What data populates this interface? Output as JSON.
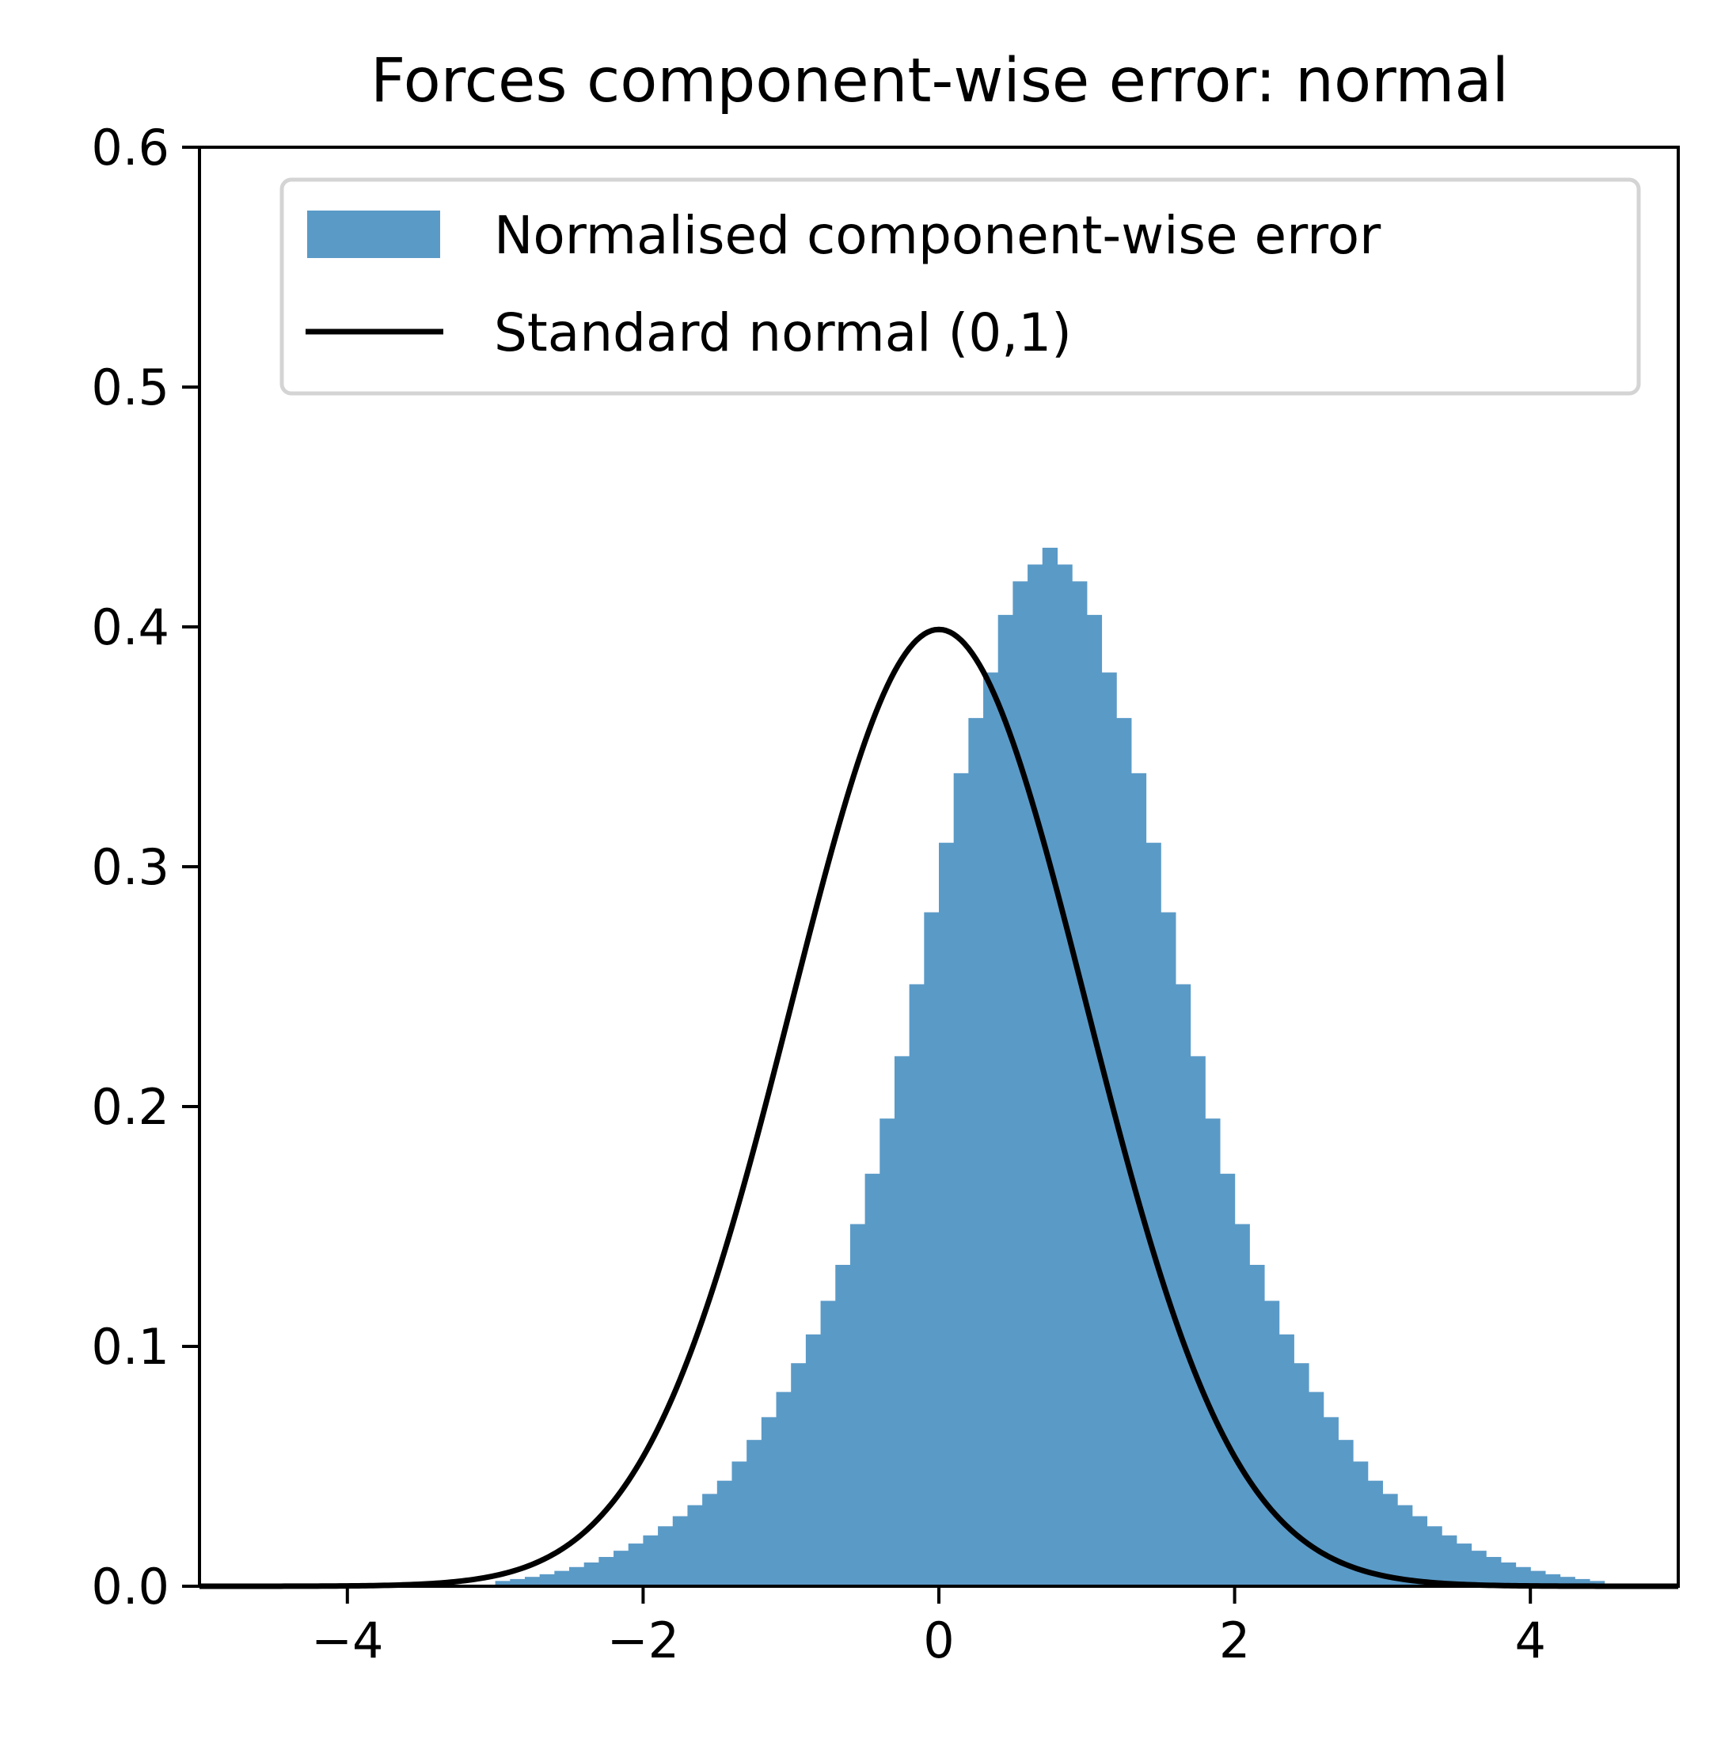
{
  "chart_data": {
    "type": "bar",
    "title": "Forces component-wise error: normal",
    "xlabel": "",
    "ylabel": "",
    "xlim": [
      -5,
      5
    ],
    "ylim": [
      0,
      0.6
    ],
    "xticks": [
      -4,
      -2,
      0,
      2,
      4
    ],
    "xtick_labels": [
      "−4",
      "−2",
      "0",
      "2",
      "4"
    ],
    "yticks": [
      0.0,
      0.1,
      0.2,
      0.3,
      0.4,
      0.5,
      0.6
    ],
    "ytick_labels": [
      "0.0",
      "0.1",
      "0.2",
      "0.3",
      "0.4",
      "0.5",
      "0.6"
    ],
    "grid": false,
    "legend_position": "top-right",
    "histogram": {
      "name": "Normalised component-wise error",
      "color": "#5a9ac7",
      "bin_width": 0.1,
      "bin_start": -3.0,
      "values": [
        0.0022,
        0.003,
        0.0039,
        0.005,
        0.0064,
        0.008,
        0.0099,
        0.0122,
        0.0148,
        0.0178,
        0.0212,
        0.025,
        0.0292,
        0.0338,
        0.0385,
        0.044,
        0.052,
        0.061,
        0.0705,
        0.081,
        0.093,
        0.105,
        0.119,
        0.134,
        0.151,
        0.172,
        0.195,
        0.221,
        0.251,
        0.281,
        0.31,
        0.339,
        0.362,
        0.381,
        0.405,
        0.419,
        0.426,
        0.433,
        0.426,
        0.419,
        0.405,
        0.381,
        0.362,
        0.339,
        0.31,
        0.281,
        0.251,
        0.221,
        0.195,
        0.172,
        0.151,
        0.134,
        0.119,
        0.105,
        0.093,
        0.081,
        0.0705,
        0.061,
        0.052,
        0.044,
        0.0385,
        0.0338,
        0.0292,
        0.025,
        0.0212,
        0.0178,
        0.0148,
        0.0122,
        0.0099,
        0.008,
        0.0064,
        0.005,
        0.0039,
        0.003,
        0.0022
      ]
    },
    "series": [
      {
        "name": "Standard normal (0,1)",
        "type": "line",
        "color": "#000000",
        "mean": 0,
        "std": 1
      }
    ]
  }
}
